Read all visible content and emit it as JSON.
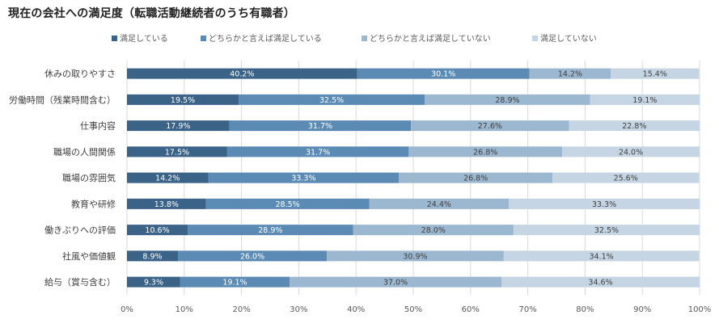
{
  "chart_data": {
    "type": "bar",
    "orientation": "horizontal",
    "stacked": "percent",
    "title": "現在の会社への満足度（転職活動継続者のうち有職者）",
    "categories": [
      "休みの取りやすさ",
      "労働時間（残業時間含む）",
      "仕事内容",
      "職場の人間関係",
      "職場の雰囲気",
      "教育や研修",
      "働きぶりへの評価",
      "社風や価値観",
      "給与（賞与含む）"
    ],
    "series": [
      {
        "name": "満足している",
        "color": "#3b6387",
        "values": [
          40.2,
          19.5,
          17.9,
          17.5,
          14.2,
          13.8,
          10.6,
          8.9,
          9.3
        ]
      },
      {
        "name": "どちらかと言えば満足している",
        "color": "#5b8bb5",
        "values": [
          30.1,
          32.5,
          31.7,
          31.7,
          33.3,
          28.5,
          28.9,
          26.0,
          19.1
        ]
      },
      {
        "name": "どちらかと言えば満足していない",
        "color": "#9cb7d0",
        "values": [
          14.2,
          28.9,
          27.6,
          26.8,
          26.8,
          24.4,
          28.0,
          30.9,
          37.0
        ]
      },
      {
        "name": "満足していない",
        "color": "#c5d5e4",
        "values": [
          15.4,
          19.1,
          22.8,
          24.0,
          25.6,
          33.3,
          32.5,
          34.1,
          34.6
        ]
      }
    ],
    "value_labels": [
      [
        "40.2%",
        "19.5%",
        "17.9%",
        "17.5%",
        "14.2%",
        "13.8%",
        "10.6%",
        "8.9%",
        "9.3%"
      ],
      [
        "30.1%",
        "32.5%",
        "31.7%",
        "31.7%",
        "33.3%",
        "28.5%",
        "28.9%",
        "26.0%",
        "19.1%"
      ],
      [
        "14.2%",
        "28.9%",
        "27.6%",
        "26.8%",
        "26.8%",
        "24.4%",
        "28.0%",
        "30.9%",
        "37.0%"
      ],
      [
        "15.4%",
        "19.1%",
        "22.8%",
        "24.0%",
        "25.6%",
        "33.3%",
        "32.5%",
        "34.1%",
        "34.6%"
      ]
    ],
    "x_ticks": [
      0,
      10,
      20,
      30,
      40,
      50,
      60,
      70,
      80,
      90,
      100
    ],
    "x_tick_labels": [
      "0%",
      "10%",
      "20%",
      "30%",
      "40%",
      "50%",
      "60%",
      "70%",
      "80%",
      "90%",
      "100%"
    ],
    "xlim": [
      0,
      100
    ],
    "grid": true,
    "legend_position": "top",
    "label_colors": {
      "light_text": "#ffffff",
      "dark_text": "#404040"
    }
  }
}
